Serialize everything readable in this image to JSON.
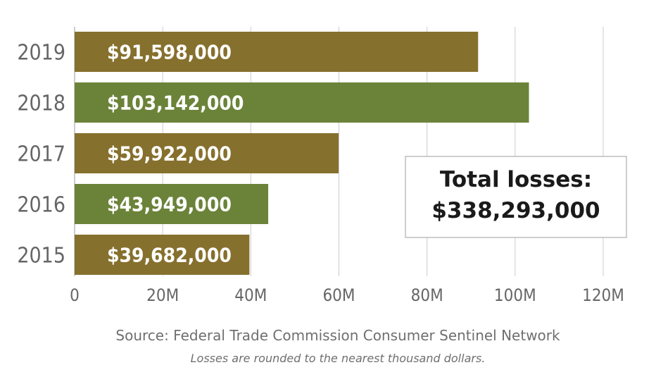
{
  "chart_data": {
    "type": "bar",
    "orientation": "horizontal",
    "categories": [
      "2019",
      "2018",
      "2017",
      "2016",
      "2015"
    ],
    "values": [
      91598000,
      103142000,
      59922000,
      43949000,
      39682000
    ],
    "value_labels": [
      "$91,598,000",
      "$103,142,000",
      "$59,922,000",
      "$43,949,000",
      "$39,682,000"
    ],
    "bar_colors": [
      "#86702d",
      "#6b8339",
      "#86702d",
      "#6b8339",
      "#86702d"
    ],
    "xlim": [
      0,
      120000000
    ],
    "x_ticks": [
      0,
      20000000,
      40000000,
      60000000,
      80000000,
      100000000,
      120000000
    ],
    "x_tick_labels": [
      "0",
      "20M",
      "40M",
      "60M",
      "80M",
      "100M",
      "120M"
    ],
    "grid": "vertical",
    "legend": "none"
  },
  "callout": {
    "line1": "Total losses:",
    "line2": "$338,293,000"
  },
  "source": "Source: Federal Trade Commission Consumer Sentinel Network",
  "note": "Losses are rounded to the nearest thousand dollars.",
  "colors": {
    "gold_bar": "#86702d",
    "green_bar": "#6b8339",
    "gridline": "#cccccc",
    "axis_text": "#666666"
  }
}
